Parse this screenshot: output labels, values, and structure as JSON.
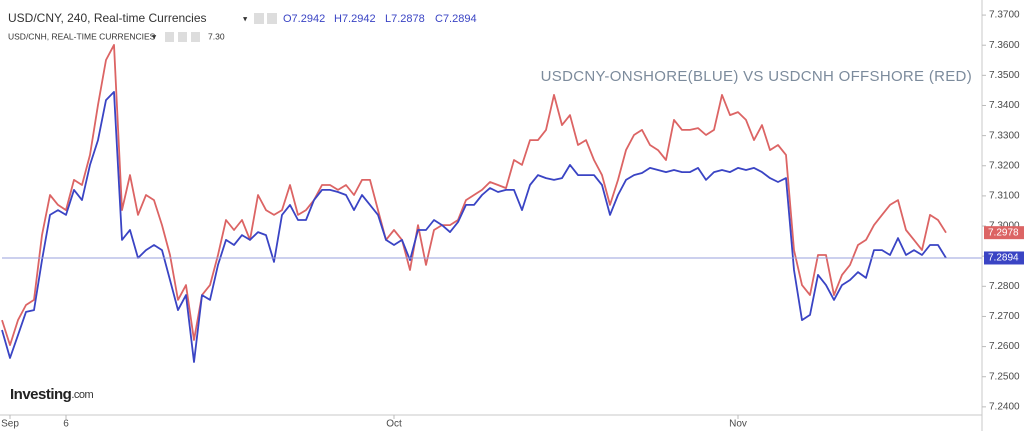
{
  "chart_data": {
    "type": "line",
    "title": "USD/CNY, 240, Real-time Currencies",
    "ohlc": [
      "O7.2942",
      "H7.2942",
      "L7.2878",
      "C7.2894"
    ],
    "subtitle": "USD/CNH, REAL-TIME CURRENCIES",
    "subtitle_value": "7.30",
    "annotation": "USDCNY-ONSHORE(BLUE) VS USDCNH OFFSHORE (RED)",
    "logo": [
      "Investing",
      ".com"
    ],
    "xlim": [
      0,
      122.5
    ],
    "xticks": [
      {
        "value": 1,
        "label": "Sep"
      },
      {
        "value": 8,
        "label": "6"
      },
      {
        "value": 49,
        "label": "Oct"
      },
      {
        "value": 92,
        "label": "Nov"
      }
    ],
    "ylim": [
      7.2373,
      7.375
    ],
    "yticks": [
      {
        "value": 7.24,
        "label": "7.2400"
      },
      {
        "value": 7.25,
        "label": "7.2500"
      },
      {
        "value": 7.26,
        "label": "7.2600"
      },
      {
        "value": 7.27,
        "label": "7.2700"
      },
      {
        "value": 7.28,
        "label": "7.2800"
      },
      {
        "value": 7.29,
        "label": "7.2900"
      },
      {
        "value": 7.3,
        "label": "7.3000"
      },
      {
        "value": 7.31,
        "label": "7.3100"
      },
      {
        "value": 7.32,
        "label": "7.3200"
      },
      {
        "value": 7.33,
        "label": "7.3300"
      },
      {
        "value": 7.34,
        "label": "7.3400"
      },
      {
        "value": 7.35,
        "label": "7.3500"
      },
      {
        "value": 7.36,
        "label": "7.3600"
      },
      {
        "value": 7.37,
        "label": "7.3700"
      }
    ],
    "series": [
      {
        "name": "USD/CNH",
        "color": "#dc6464",
        "values": [
          7.2688,
          7.2605,
          7.2688,
          7.2738,
          7.2755,
          7.297,
          7.3103,
          7.307,
          7.3053,
          7.3153,
          7.3136,
          7.3236,
          7.3402,
          7.3551,
          7.3601,
          7.3053,
          7.3169,
          7.3037,
          7.3103,
          7.3086,
          7.3003,
          7.2904,
          7.2755,
          7.2804,
          7.2622,
          7.2771,
          7.2804,
          7.2904,
          7.302,
          7.2987,
          7.302,
          7.2954,
          7.3103,
          7.3053,
          7.3037,
          7.3053,
          7.3136,
          7.3037,
          7.3053,
          7.3086,
          7.3136,
          7.3136,
          7.312,
          7.3136,
          7.3103,
          7.3153,
          7.3153,
          7.3053,
          7.2954,
          7.2987,
          7.2954,
          7.2854,
          7.3003,
          7.2871,
          7.2987,
          7.3003,
          7.3003,
          7.302,
          7.3086,
          7.3103,
          7.312,
          7.3146,
          7.3136,
          7.3126,
          7.3219,
          7.3203,
          7.3285,
          7.3285,
          7.3319,
          7.3435,
          7.3335,
          7.3368,
          7.3269,
          7.3285,
          7.3219,
          7.3169,
          7.307,
          7.3153,
          7.3252,
          7.3302,
          7.3319,
          7.3269,
          7.3252,
          7.3219,
          7.3352,
          7.3319,
          7.3319,
          7.3325,
          7.3302,
          7.3319,
          7.3435,
          7.3368,
          7.3378,
          7.3352,
          7.3285,
          7.3335,
          7.3252,
          7.3269,
          7.3236,
          7.292,
          7.2804,
          7.2771,
          7.2904,
          7.2904,
          7.2771,
          7.2838,
          7.2871,
          7.2937,
          7.2954,
          7.3003,
          7.3037,
          7.307,
          7.3086,
          7.2987,
          7.2954,
          7.292,
          7.3037,
          7.302,
          7.2978
        ]
      },
      {
        "name": "USD/CNY",
        "color": "#3a44c4",
        "values": [
          7.2655,
          7.2562,
          7.2638,
          7.2715,
          7.2721,
          7.2887,
          7.3037,
          7.3053,
          7.3037,
          7.312,
          7.3086,
          7.3203,
          7.3285,
          7.3418,
          7.3445,
          7.2954,
          7.2987,
          7.2894,
          7.292,
          7.2937,
          7.292,
          7.2821,
          7.2721,
          7.2771,
          7.2549,
          7.2771,
          7.2755,
          7.2871,
          7.2954,
          7.2937,
          7.297,
          7.2954,
          7.298,
          7.297,
          7.2881,
          7.3037,
          7.307,
          7.302,
          7.302,
          7.3086,
          7.312,
          7.312,
          7.3113,
          7.3103,
          7.3053,
          7.3103,
          7.307,
          7.3037,
          7.2954,
          7.2937,
          7.2954,
          7.2887,
          7.2987,
          7.2987,
          7.302,
          7.3003,
          7.298,
          7.3013,
          7.307,
          7.307,
          7.3103,
          7.3126,
          7.3113,
          7.312,
          7.312,
          7.3053,
          7.3136,
          7.3169,
          7.3159,
          7.3153,
          7.3159,
          7.3203,
          7.3169,
          7.3169,
          7.3169,
          7.3136,
          7.3037,
          7.3103,
          7.3153,
          7.3169,
          7.3176,
          7.3193,
          7.3186,
          7.3179,
          7.3186,
          7.3179,
          7.3179,
          7.3193,
          7.3153,
          7.3179,
          7.3186,
          7.3179,
          7.3193,
          7.3186,
          7.3193,
          7.3179,
          7.3159,
          7.3146,
          7.3159,
          7.2854,
          7.2688,
          7.2705,
          7.2838,
          7.2804,
          7.2755,
          7.2804,
          7.2821,
          7.2847,
          7.2828,
          7.292,
          7.292,
          7.2904,
          7.296,
          7.2904,
          7.292,
          7.2904,
          7.2937,
          7.2937,
          7.2894
        ]
      }
    ]
  }
}
